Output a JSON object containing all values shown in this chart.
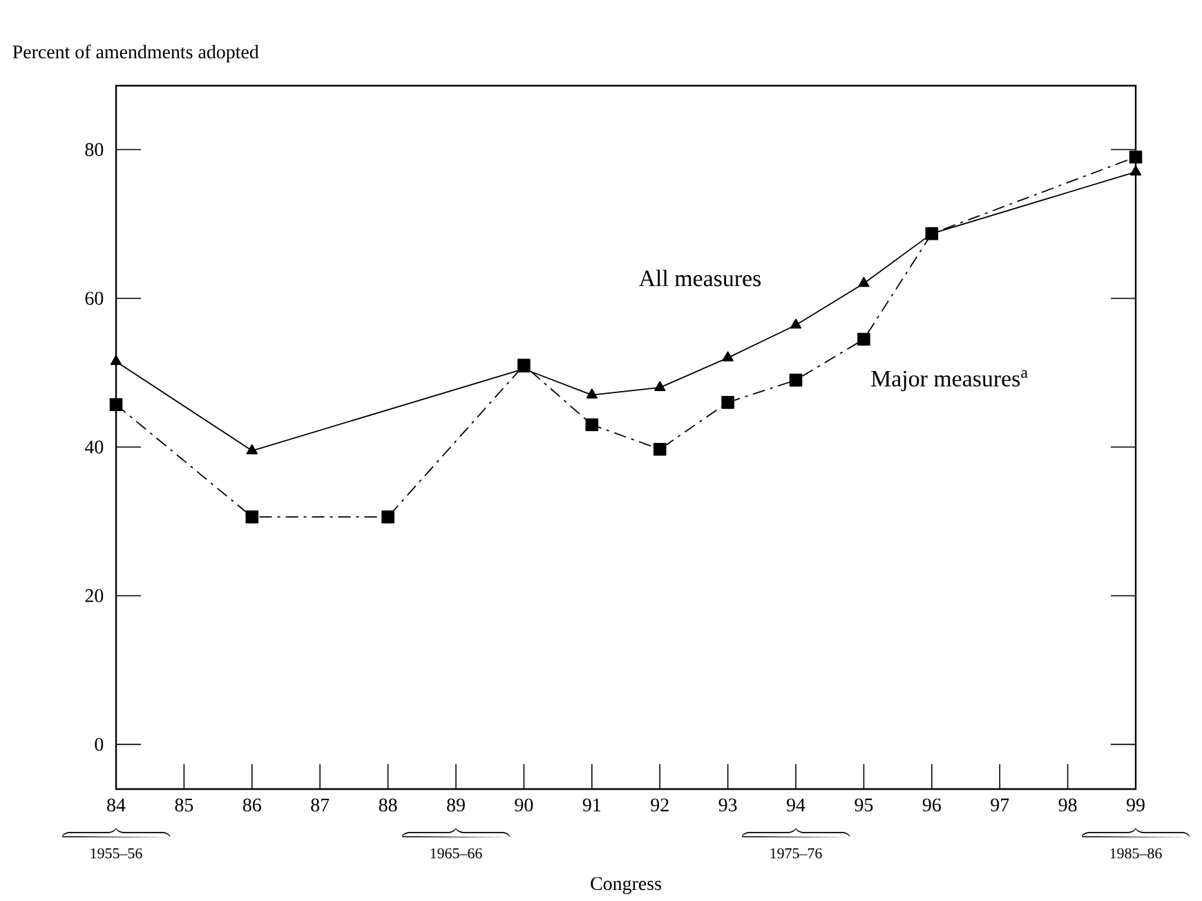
{
  "chart_data": {
    "type": "line",
    "ylabel": "Percent of amendments adopted",
    "xlabel": "Congress",
    "xlim": [
      84,
      99
    ],
    "xticks": [
      84,
      85,
      86,
      87,
      88,
      89,
      90,
      91,
      92,
      93,
      94,
      95,
      96,
      97,
      98,
      99
    ],
    "ylim": [
      -6,
      88.6
    ],
    "yticks": [
      0,
      20,
      40,
      60,
      80
    ],
    "grid": false,
    "series": [
      {
        "name": "All measures",
        "color": "#000000",
        "marker": "triangle",
        "line_style": "solid",
        "x": [
          84,
          86,
          90,
          91,
          92,
          93,
          94,
          95,
          96,
          99
        ],
        "values": [
          51.5,
          39.5,
          50.5,
          47,
          48,
          52,
          56.4,
          62,
          68.7,
          77
        ]
      },
      {
        "name": "Major measures$^{a}$",
        "color": "#000000",
        "marker": "square",
        "line_style": "dashdot",
        "x": [
          84,
          86,
          88,
          90,
          91,
          92,
          93,
          94,
          95,
          96,
          99
        ],
        "values": [
          45.7,
          30.6,
          30.6,
          51,
          43,
          39.7,
          46,
          49,
          54.5,
          68.7,
          79
        ]
      }
    ],
    "annotations": [
      "1955–56",
      "1965–66",
      "1975–76",
      "1985–86"
    ]
  }
}
